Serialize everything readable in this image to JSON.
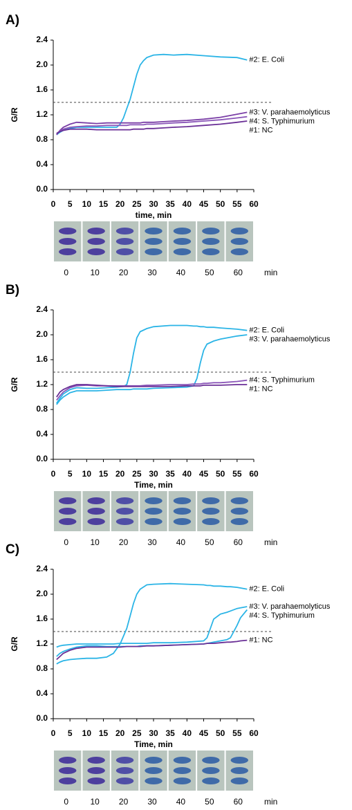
{
  "chart_data": [
    {
      "type": "line",
      "panel": "A)",
      "x_label": "time, min",
      "y_label": "G/R",
      "x": [
        1,
        2,
        3,
        5,
        7,
        10,
        13,
        16,
        19,
        20,
        21,
        22,
        23,
        24,
        25,
        26,
        27,
        28,
        30,
        33,
        36,
        40,
        45,
        50,
        55,
        58
      ],
      "series": [
        {
          "name": "#2: E. Coli",
          "color": "#2ab4e6",
          "values": [
            0.88,
            0.92,
            0.95,
            0.98,
            1.0,
            1.0,
            1.0,
            1.0,
            1.0,
            1.05,
            1.15,
            1.3,
            1.45,
            1.65,
            1.85,
            2.0,
            2.07,
            2.12,
            2.16,
            2.17,
            2.16,
            2.17,
            2.15,
            2.13,
            2.12,
            2.08
          ]
        },
        {
          "name": "#3: V. parahaemolyticus",
          "color": "#7a3ea6",
          "values": [
            0.88,
            0.95,
            1.0,
            1.05,
            1.08,
            1.07,
            1.06,
            1.07,
            1.07,
            1.07,
            1.07,
            1.07,
            1.07,
            1.07,
            1.07,
            1.07,
            1.08,
            1.08,
            1.08,
            1.09,
            1.1,
            1.11,
            1.13,
            1.16,
            1.21,
            1.24
          ]
        },
        {
          "name": "#4: S. Typhimurium",
          "color": "#8a55b8",
          "values": [
            0.9,
            0.94,
            0.97,
            1.0,
            1.01,
            1.02,
            1.02,
            1.03,
            1.03,
            1.03,
            1.03,
            1.03,
            1.04,
            1.04,
            1.04,
            1.04,
            1.04,
            1.05,
            1.05,
            1.06,
            1.07,
            1.08,
            1.1,
            1.12,
            1.15,
            1.17
          ]
        },
        {
          "name": "#1: NC",
          "color": "#6a2f96",
          "values": [
            0.9,
            0.93,
            0.95,
            0.97,
            0.97,
            0.97,
            0.96,
            0.96,
            0.96,
            0.96,
            0.96,
            0.96,
            0.96,
            0.97,
            0.97,
            0.97,
            0.97,
            0.98,
            0.98,
            0.99,
            1.0,
            1.01,
            1.03,
            1.05,
            1.08,
            1.1
          ]
        }
      ],
      "xlim": [
        0,
        60
      ],
      "ylim": [
        0,
        2.4
      ],
      "xticks": [
        0,
        5,
        10,
        15,
        20,
        25,
        30,
        35,
        40,
        45,
        50,
        55,
        60
      ],
      "yticks": [
        {
          "value": 0,
          "label": "0.0"
        },
        0.4,
        0.8,
        1.2,
        1.6,
        {
          "value": 2,
          "label": "2.0"
        },
        2.4
      ],
      "threshold": 1.4,
      "image_times": [
        0,
        10,
        20,
        30,
        40,
        50,
        60
      ],
      "image_unit": "min"
    },
    {
      "type": "line",
      "panel": "B)",
      "x_label": "Time, min",
      "y_label": "G/R",
      "x": [
        1,
        2,
        3,
        5,
        7,
        10,
        13,
        16,
        19,
        21,
        22,
        23,
        24,
        25,
        26,
        28,
        30,
        35,
        40,
        42,
        43,
        44,
        45,
        46,
        48,
        50,
        55,
        58
      ],
      "series": [
        {
          "name": "#2: E. Coli",
          "color": "#2ab4e6",
          "values": [
            0.9,
            0.98,
            1.05,
            1.12,
            1.15,
            1.14,
            1.14,
            1.15,
            1.16,
            1.17,
            1.2,
            1.4,
            1.7,
            1.95,
            2.05,
            2.1,
            2.13,
            2.15,
            2.15,
            2.14,
            2.14,
            2.13,
            2.13,
            2.12,
            2.12,
            2.11,
            2.09,
            2.07
          ]
        },
        {
          "name": "#3: V. parahaemolyticus",
          "color": "#2ab4e6",
          "values": [
            0.88,
            0.95,
            1.0,
            1.07,
            1.1,
            1.1,
            1.1,
            1.11,
            1.12,
            1.12,
            1.12,
            1.12,
            1.13,
            1.13,
            1.13,
            1.13,
            1.14,
            1.15,
            1.16,
            1.18,
            1.3,
            1.55,
            1.75,
            1.85,
            1.9,
            1.93,
            1.98,
            2.0
          ]
        },
        {
          "name": "#4: S. Typhimurium",
          "color": "#8a55b8",
          "values": [
            0.95,
            1.02,
            1.08,
            1.15,
            1.18,
            1.19,
            1.18,
            1.18,
            1.18,
            1.18,
            1.18,
            1.18,
            1.18,
            1.18,
            1.18,
            1.19,
            1.19,
            1.2,
            1.2,
            1.21,
            1.21,
            1.21,
            1.22,
            1.22,
            1.23,
            1.23,
            1.25,
            1.27
          ]
        },
        {
          "name": "#1: NC",
          "color": "#6a2f96",
          "values": [
            1.0,
            1.08,
            1.12,
            1.17,
            1.2,
            1.2,
            1.19,
            1.18,
            1.17,
            1.17,
            1.17,
            1.17,
            1.17,
            1.17,
            1.17,
            1.17,
            1.17,
            1.17,
            1.18,
            1.18,
            1.18,
            1.18,
            1.19,
            1.19,
            1.19,
            1.19,
            1.2,
            1.2
          ]
        }
      ],
      "xlim": [
        0,
        60
      ],
      "ylim": [
        0,
        2.4
      ],
      "xticks": [
        0,
        5,
        10,
        15,
        20,
        25,
        30,
        35,
        40,
        45,
        50,
        55,
        60
      ],
      "yticks": [
        {
          "value": 0,
          "label": "0.0"
        },
        0.4,
        0.8,
        1.2,
        1.6,
        {
          "value": 2,
          "label": "2.0"
        },
        2.4
      ],
      "threshold": 1.4,
      "image_times": [
        0,
        10,
        20,
        30,
        40,
        50,
        60
      ],
      "image_unit": "min"
    },
    {
      "type": "line",
      "panel": "C)",
      "x_label": "Time, min",
      "y_label": "G/R",
      "x": [
        1,
        2,
        3,
        5,
        7,
        10,
        13,
        16,
        18,
        20,
        22,
        23,
        24,
        25,
        26,
        28,
        30,
        35,
        40,
        45,
        46,
        47,
        48,
        50,
        52,
        53,
        55,
        56,
        58
      ],
      "series": [
        {
          "name": "#2: E. Coli",
          "color": "#2ab4e6",
          "values": [
            0.88,
            0.91,
            0.93,
            0.95,
            0.96,
            0.97,
            0.97,
            0.99,
            1.05,
            1.2,
            1.45,
            1.65,
            1.85,
            2.0,
            2.08,
            2.15,
            2.16,
            2.17,
            2.16,
            2.15,
            2.14,
            2.14,
            2.13,
            2.13,
            2.12,
            2.12,
            2.11,
            2.1,
            2.08
          ]
        },
        {
          "name": "#3: V. parahaemolyticus",
          "color": "#2ab4e6",
          "values": [
            1.15,
            1.17,
            1.18,
            1.19,
            1.2,
            1.2,
            1.2,
            1.2,
            1.2,
            1.21,
            1.21,
            1.21,
            1.21,
            1.21,
            1.21,
            1.21,
            1.22,
            1.22,
            1.23,
            1.25,
            1.3,
            1.45,
            1.6,
            1.68,
            1.71,
            1.73,
            1.77,
            1.78,
            1.8
          ]
        },
        {
          "name": "#4: S. Typhimurium",
          "color": "#2ab4e6",
          "values": [
            1.0,
            1.05,
            1.08,
            1.12,
            1.15,
            1.17,
            1.17,
            1.16,
            1.16,
            1.16,
            1.16,
            1.16,
            1.16,
            1.16,
            1.17,
            1.17,
            1.17,
            1.18,
            1.19,
            1.2,
            1.21,
            1.22,
            1.23,
            1.25,
            1.27,
            1.3,
            1.5,
            1.62,
            1.75
          ]
        },
        {
          "name": "#1: NC",
          "color": "#6a2f96",
          "values": [
            0.95,
            1.0,
            1.05,
            1.1,
            1.13,
            1.15,
            1.15,
            1.15,
            1.15,
            1.15,
            1.16,
            1.16,
            1.16,
            1.16,
            1.16,
            1.17,
            1.17,
            1.18,
            1.19,
            1.2,
            1.21,
            1.21,
            1.21,
            1.22,
            1.23,
            1.23,
            1.24,
            1.25,
            1.26
          ]
        }
      ],
      "xlim": [
        0,
        60
      ],
      "ylim": [
        0,
        2.4
      ],
      "xticks": [
        0,
        5,
        10,
        15,
        20,
        25,
        30,
        35,
        40,
        45,
        50,
        55,
        60
      ],
      "yticks": [
        {
          "value": 0,
          "label": "0.0"
        },
        0.4,
        0.8,
        1.2,
        1.6,
        {
          "value": 2,
          "label": "2.0"
        },
        2.4
      ],
      "threshold": 1.4,
      "image_times": [
        0,
        10,
        20,
        30,
        40,
        50,
        60
      ],
      "image_unit": "min"
    }
  ]
}
